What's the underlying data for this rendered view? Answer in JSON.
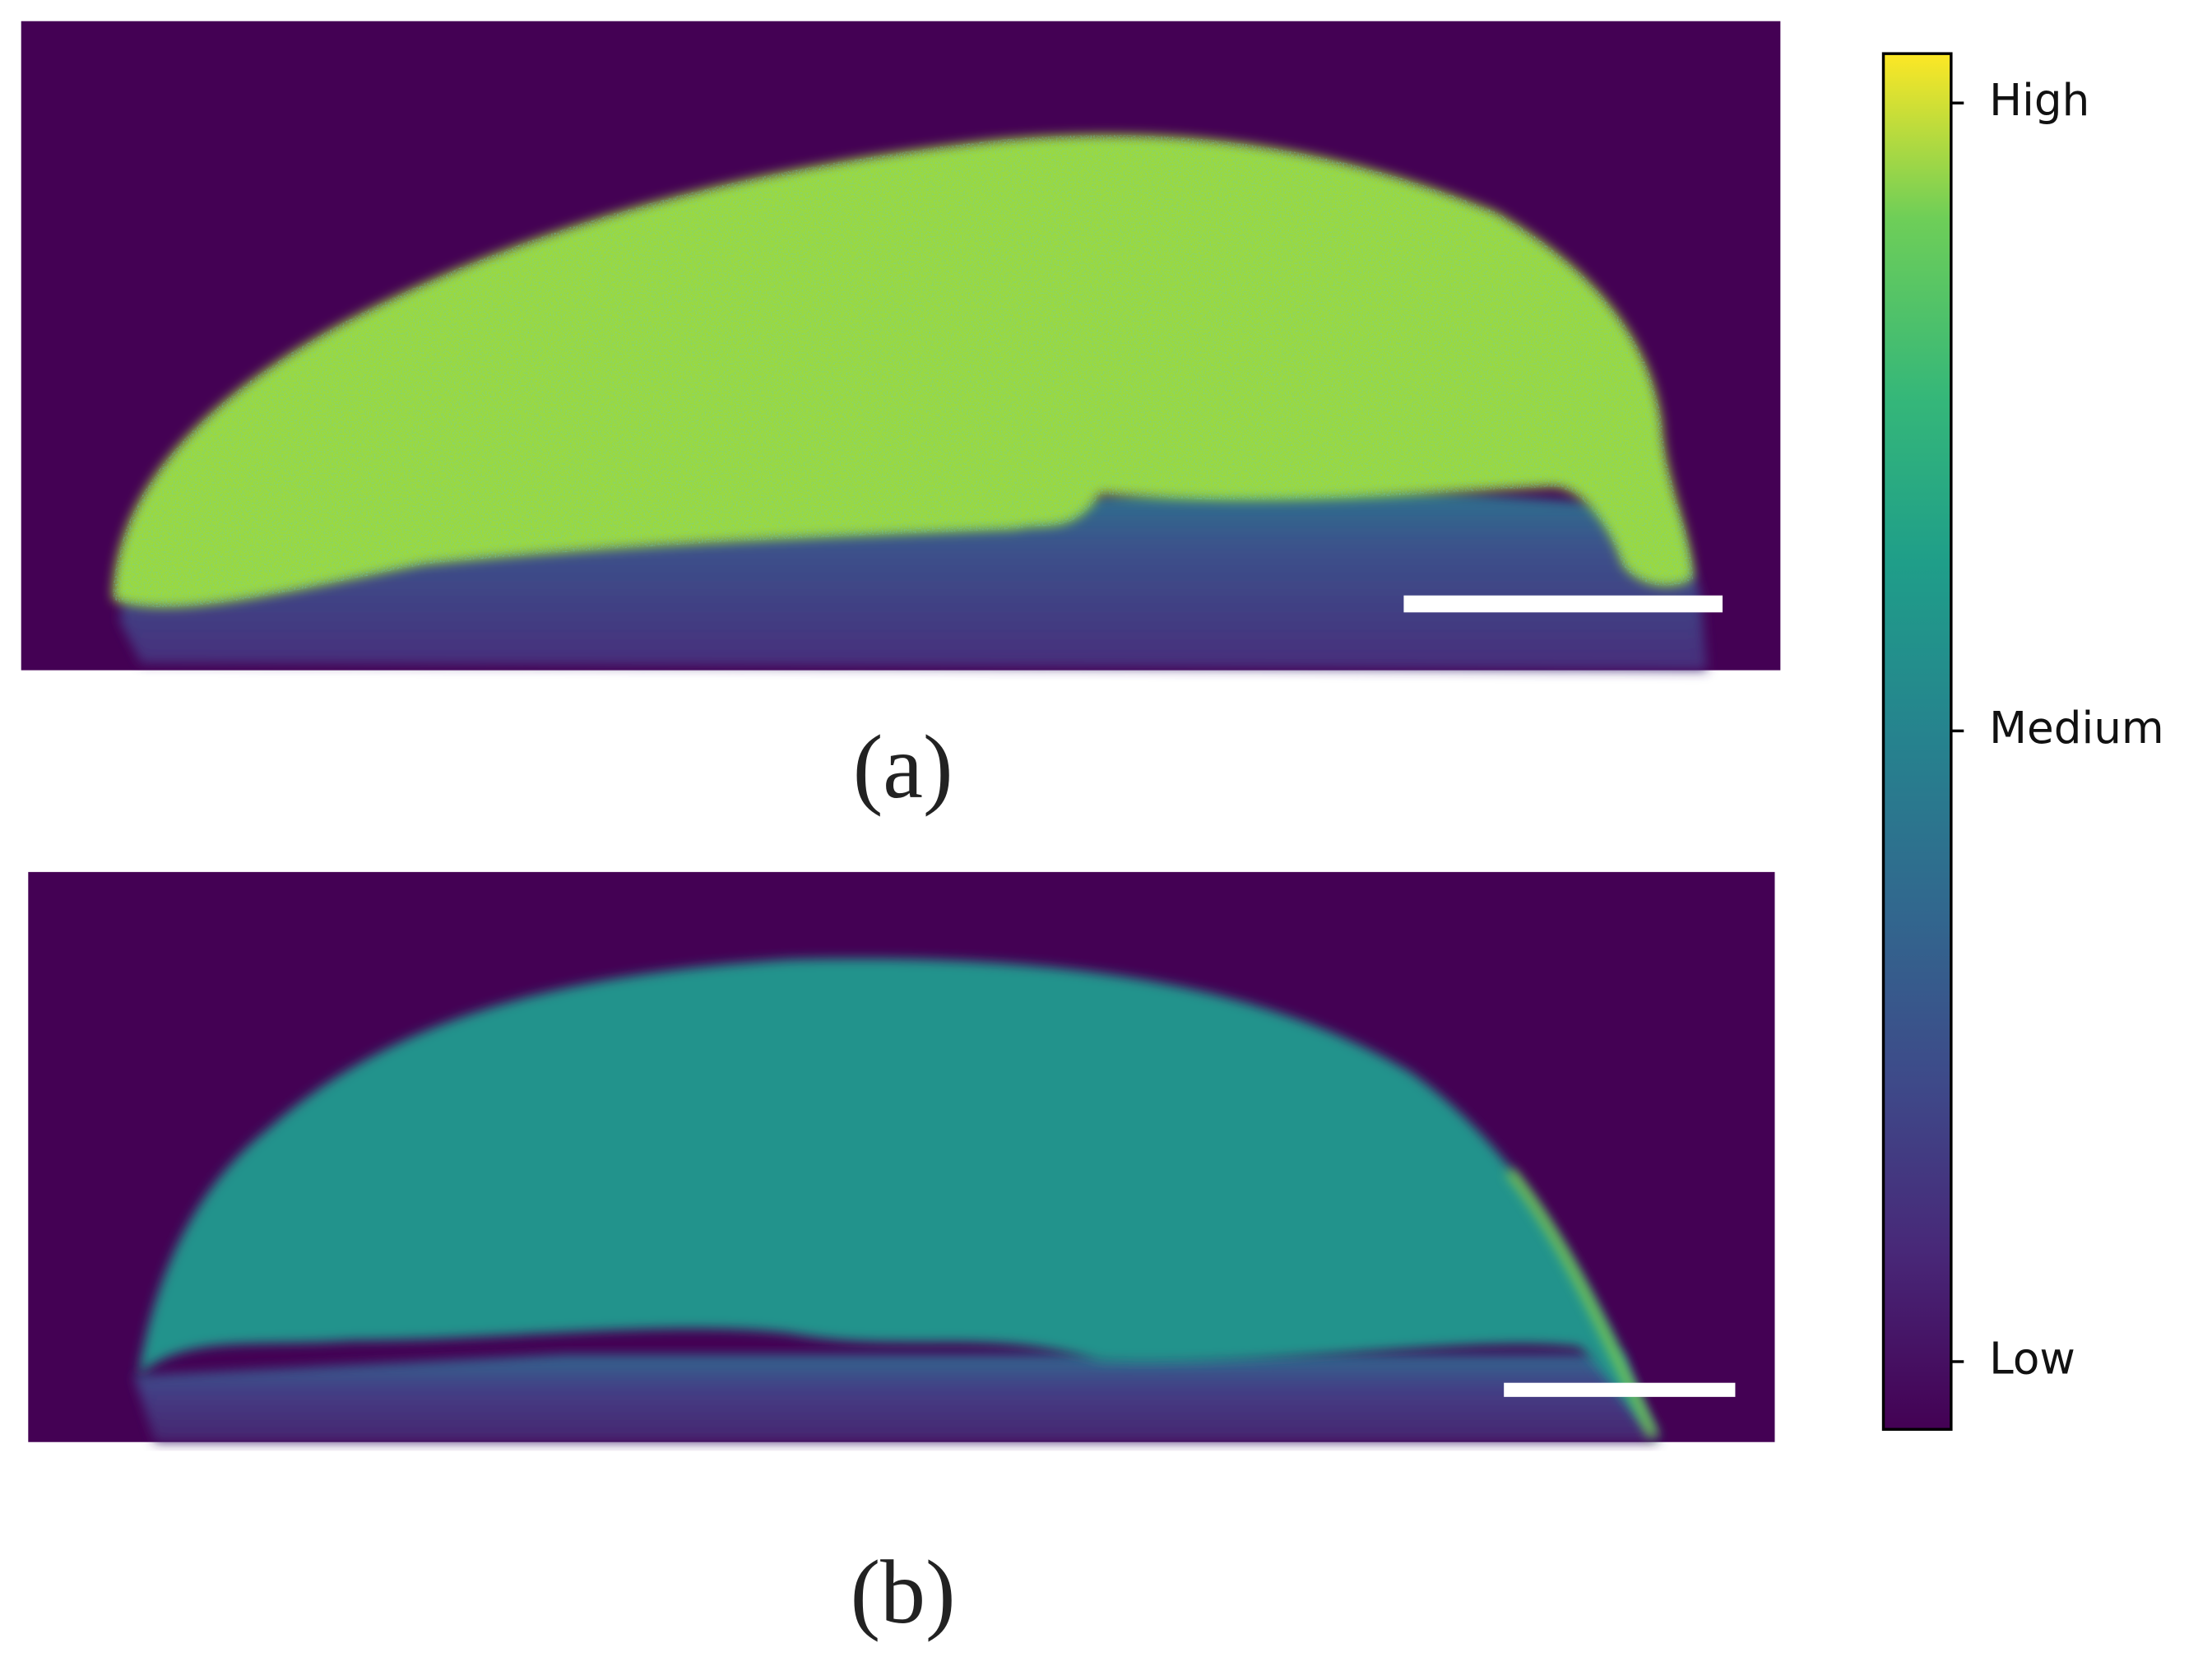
{
  "panels": [
    {
      "label": "(a)"
    },
    {
      "label": "(b)"
    }
  ],
  "colorbar": {
    "ticks": [
      "High",
      "Medium",
      "Low"
    ]
  }
}
